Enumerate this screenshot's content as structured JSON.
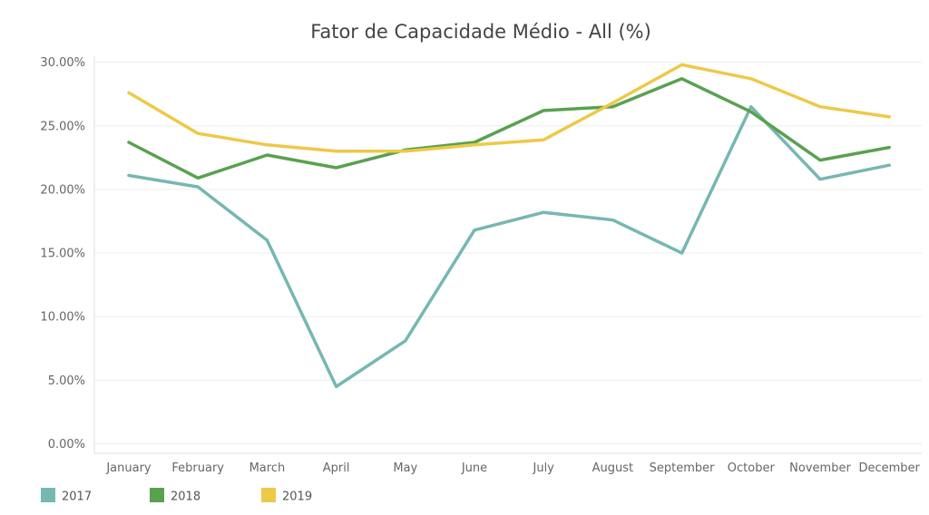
{
  "chart_data": {
    "type": "line",
    "title": "Fator de Capacidade Médio - All (%)",
    "xlabel": "",
    "ylabel": "",
    "categories": [
      "January",
      "February",
      "March",
      "April",
      "May",
      "June",
      "July",
      "August",
      "September",
      "October",
      "November",
      "December"
    ],
    "ylim": [
      0,
      30
    ],
    "yticks": [
      "0.00%",
      "5.00%",
      "10.00%",
      "15.00%",
      "20.00%",
      "25.00%",
      "30.00%"
    ],
    "ytick_values": [
      0,
      5,
      10,
      15,
      20,
      25,
      30
    ],
    "grid": true,
    "legend_position": "bottom-left",
    "series": [
      {
        "name": "2017",
        "color": "#76b7b2",
        "values": [
          21.1,
          20.2,
          16.0,
          4.5,
          8.1,
          16.8,
          18.2,
          17.6,
          15.0,
          26.5,
          20.8,
          21.9
        ]
      },
      {
        "name": "2018",
        "color": "#59a14f",
        "values": [
          23.7,
          20.9,
          22.7,
          21.7,
          23.1,
          23.7,
          26.2,
          26.5,
          28.7,
          26.1,
          22.3,
          23.3
        ]
      },
      {
        "name": "2019",
        "color": "#edc948",
        "values": [
          27.6,
          24.4,
          23.5,
          23.0,
          23.0,
          23.5,
          23.9,
          26.8,
          29.8,
          28.7,
          26.5,
          25.7
        ]
      }
    ]
  }
}
